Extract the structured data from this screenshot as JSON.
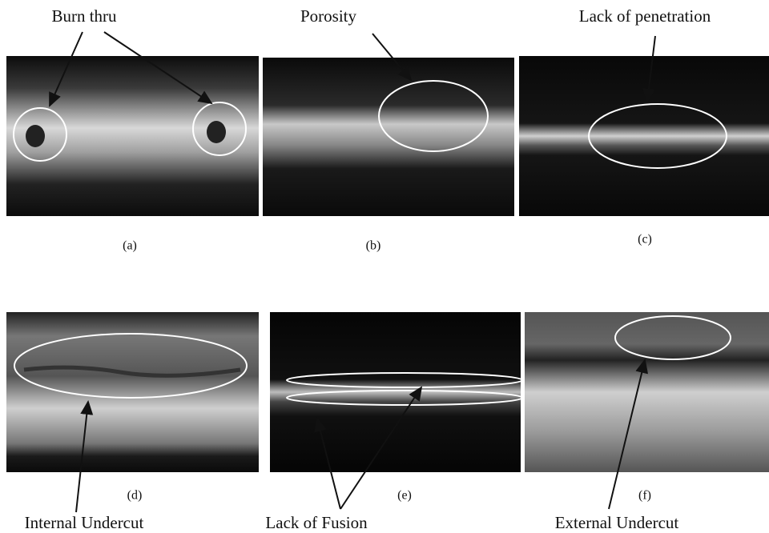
{
  "panels": [
    {
      "label": "(a)",
      "annotation": "Burn thru"
    },
    {
      "label": "(b)",
      "annotation": "Porosity"
    },
    {
      "label": "(c)",
      "annotation": "Lack of penetration"
    },
    {
      "label": "(d)",
      "annotation": "Internal Undercut"
    },
    {
      "label": "(e)",
      "annotation": "Lack of Fusion"
    },
    {
      "label": "(f)",
      "annotation": "External Undercut"
    }
  ]
}
